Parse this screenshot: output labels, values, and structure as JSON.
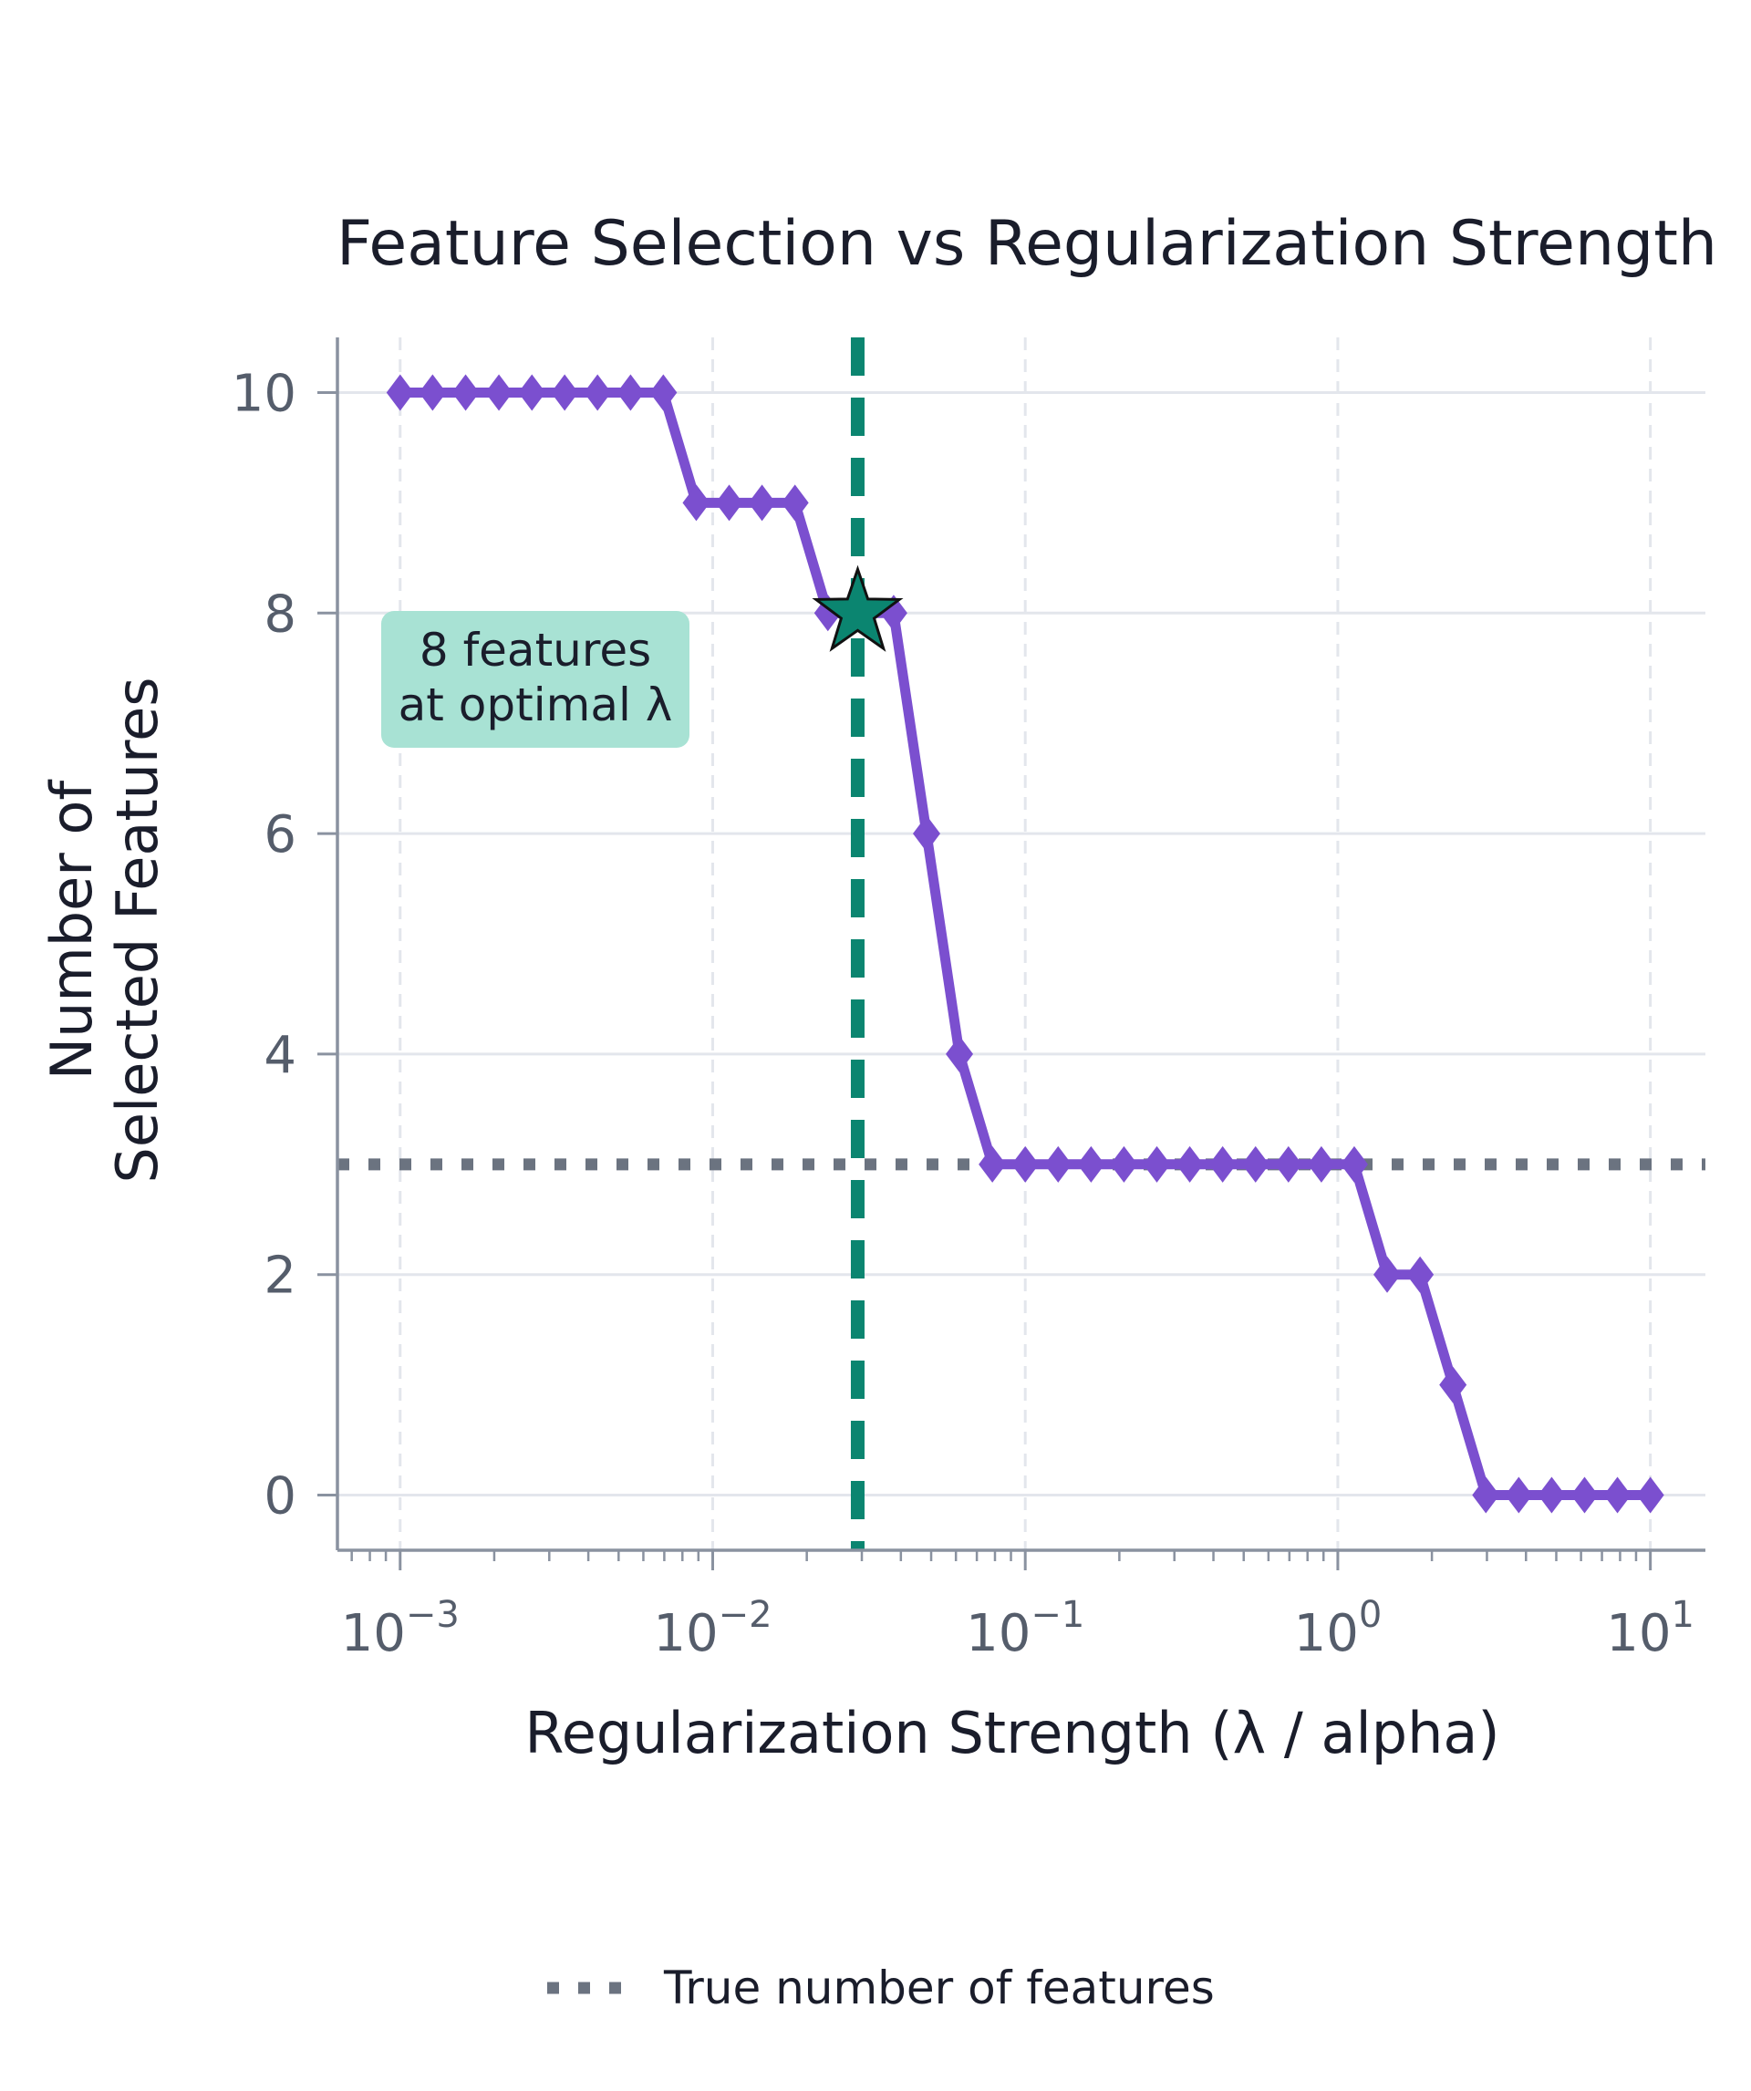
{
  "chart_data": {
    "type": "line",
    "title": "Feature Selection vs Regularization Strength",
    "xlabel": "Regularization Strength (λ / alpha)",
    "ylabel_lines": [
      "Number of",
      "Selected Features"
    ],
    "x_scale": "log",
    "xlim": [
      0.00063,
      15
    ],
    "ylim": [
      -0.5,
      10.5
    ],
    "x_ticks": [
      {
        "value": 0.001,
        "base": "10",
        "exp": "−3"
      },
      {
        "value": 0.01,
        "base": "10",
        "exp": "−2"
      },
      {
        "value": 0.1,
        "base": "10",
        "exp": "−1"
      },
      {
        "value": 1,
        "base": "10",
        "exp": "0"
      },
      {
        "value": 10,
        "base": "10",
        "exp": "1"
      }
    ],
    "y_ticks": [
      0,
      2,
      4,
      6,
      8,
      10
    ],
    "grid": true,
    "series": [
      {
        "name": "",
        "color": "#7b4fcf",
        "marker": "diamond",
        "x": [
          0.001,
          0.00127,
          0.00162,
          0.00207,
          0.00264,
          0.00336,
          0.00428,
          0.00546,
          0.00695,
          0.00886,
          0.01129,
          0.01438,
          0.01833,
          0.02336,
          0.02976,
          0.03793,
          0.04833,
          0.06158,
          0.07848,
          0.1,
          0.12743,
          0.16238,
          0.20691,
          0.26367,
          0.33598,
          0.42813,
          0.54556,
          0.69519,
          0.88587,
          1.12884,
          1.43845,
          1.83298,
          2.33572,
          2.97635,
          3.79269,
          4.83293,
          6.15848,
          7.8476,
          10
        ],
        "y": [
          10,
          10,
          10,
          10,
          10,
          10,
          10,
          10,
          10,
          9,
          9,
          9,
          9,
          8,
          8,
          8,
          6,
          4,
          3,
          3,
          3,
          3,
          3,
          3,
          3,
          3,
          3,
          3,
          3,
          3,
          2,
          2,
          1,
          0,
          0,
          0,
          0,
          0,
          0
        ]
      }
    ],
    "optimal": {
      "x": 0.0291,
      "y": 8,
      "line_color": "#0b8570",
      "marker": "star"
    },
    "reference_line": {
      "y": 3,
      "color": "#6b7380",
      "style": "dotted",
      "label": "True number of features"
    },
    "annotation": {
      "lines": [
        "8 features",
        "at optimal λ"
      ],
      "background": "#a8e2d4"
    },
    "legend_position": "bottom-center"
  }
}
